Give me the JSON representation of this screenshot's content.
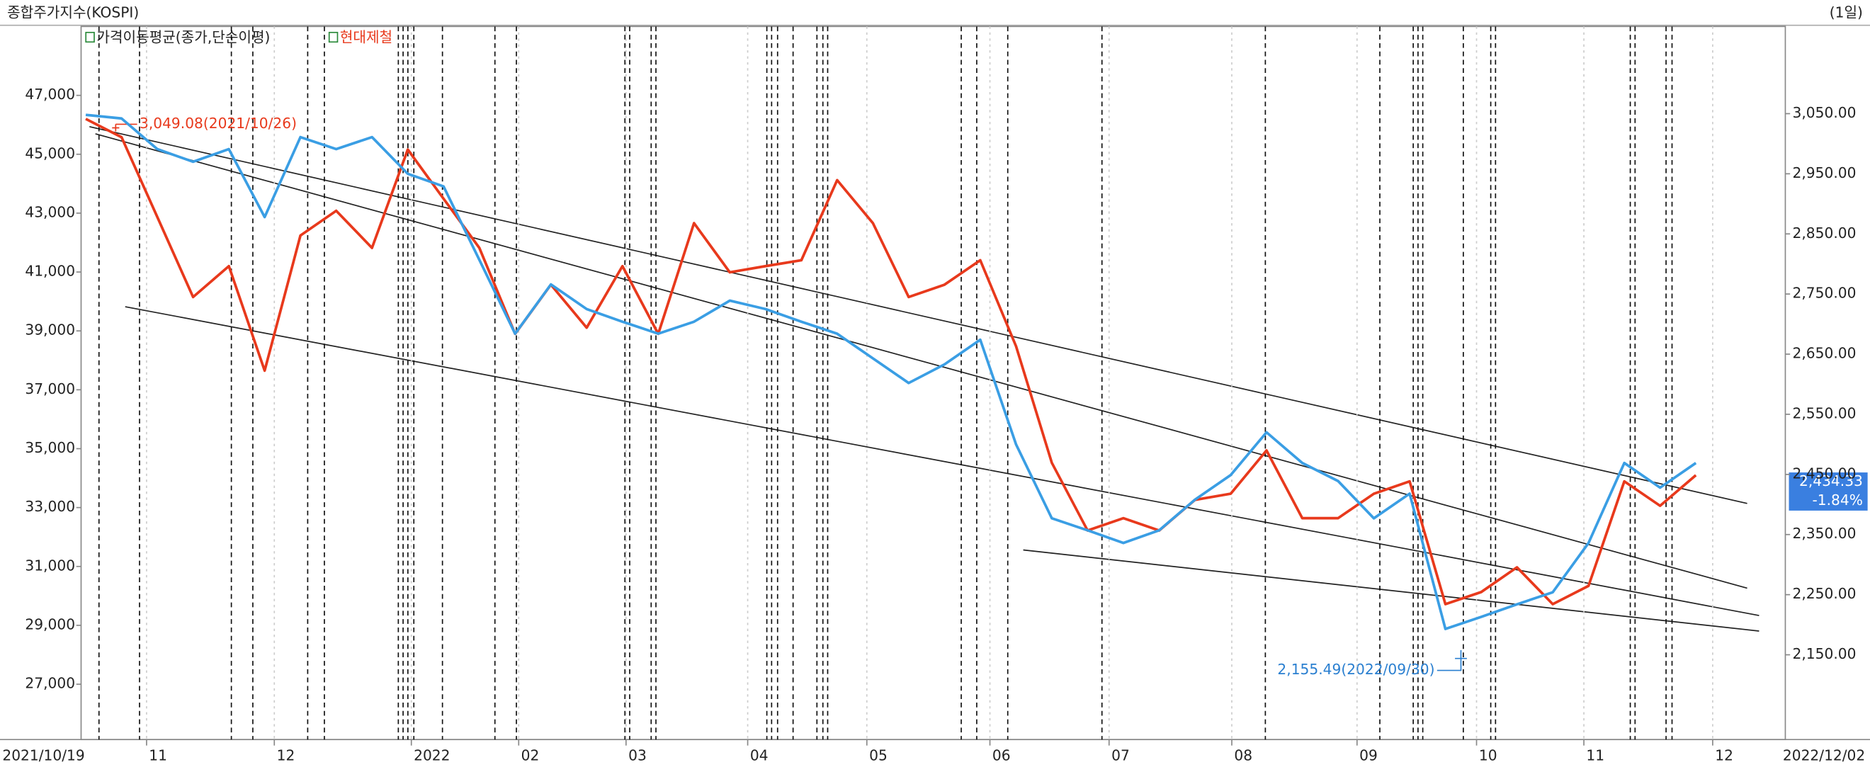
{
  "chart_data": {
    "type": "line",
    "title": "종합주가지수(KOSPI)",
    "period_label": "(1일)",
    "x_range_labels": [
      "2021/10/19",
      "2022/12/02"
    ],
    "x": [
      0,
      1,
      2,
      3,
      4,
      5,
      6,
      7,
      8,
      9,
      10,
      11,
      12,
      13,
      14,
      15,
      16,
      17,
      18,
      19,
      20,
      21,
      22,
      23,
      24,
      25,
      26,
      27,
      28,
      29,
      30,
      31,
      32,
      33,
      34,
      35,
      36,
      37,
      38,
      39,
      40,
      41,
      42,
      43,
      44,
      45
    ],
    "xlim": [
      -0.13,
      47.5
    ],
    "xticks": [
      {
        "value": 1.7,
        "label": "11"
      },
      {
        "value": 5.27,
        "label": "12"
      },
      {
        "value": 9.1,
        "label": "2022"
      },
      {
        "value": 12.1,
        "label": "02"
      },
      {
        "value": 15.1,
        "label": "03"
      },
      {
        "value": 18.5,
        "label": "04"
      },
      {
        "value": 21.83,
        "label": "05"
      },
      {
        "value": 25.27,
        "label": "06"
      },
      {
        "value": 28.6,
        "label": "07"
      },
      {
        "value": 32.03,
        "label": "08"
      },
      {
        "value": 35.53,
        "label": "09"
      },
      {
        "value": 38.87,
        "label": "10"
      },
      {
        "value": 41.87,
        "label": "11"
      },
      {
        "value": 45.47,
        "label": "12"
      }
    ],
    "ylim": [
      25120,
      49340
    ],
    "yticks": [
      {
        "value": 27000,
        "label": "27,000"
      },
      {
        "value": 29000,
        "label": "29,000"
      },
      {
        "value": 31000,
        "label": "31,000"
      },
      {
        "value": 33000,
        "label": "33,000"
      },
      {
        "value": 35000,
        "label": "35,000"
      },
      {
        "value": 37000,
        "label": "37,000"
      },
      {
        "value": 39000,
        "label": "39,000"
      },
      {
        "value": 41000,
        "label": "41,000"
      },
      {
        "value": 43000,
        "label": "43,000"
      },
      {
        "value": 45000,
        "label": "45,000"
      },
      {
        "value": 47000,
        "label": "47,000"
      }
    ],
    "y2lim": [
      2009,
      3195
    ],
    "y2ticks": [
      {
        "value": 2150,
        "label": "2,150.00"
      },
      {
        "value": 2250,
        "label": "2,250.00"
      },
      {
        "value": 2350,
        "label": "2,350.00"
      },
      {
        "value": 2450,
        "label": "2,450.00"
      },
      {
        "value": 2550,
        "label": "2,550.00"
      },
      {
        "value": 2650,
        "label": "2,650.00"
      },
      {
        "value": 2750,
        "label": "2,750.00"
      },
      {
        "value": 2850,
        "label": "2,850.00"
      },
      {
        "value": 2950,
        "label": "2,950.00"
      },
      {
        "value": 3050,
        "label": "3,050.00"
      }
    ],
    "series": [
      {
        "name": "가격이동평균(종가,단순이평)",
        "color": "#3a9ee4",
        "axis": "y2",
        "values": [
          3048,
          3042,
          2991,
          2970,
          2991,
          2878,
          3011,
          2991,
          3011,
          2950,
          2929,
          2807,
          2684,
          2766,
          2725,
          2704,
          2684,
          2704,
          2739,
          2725,
          2704,
          2684,
          2643,
          2602,
          2633,
          2674,
          2500,
          2377,
          2357,
          2336,
          2357,
          2408,
          2449,
          2520,
          2469,
          2439,
          2377,
          2418,
          2193,
          2213,
          2234,
          2254,
          2336,
          2469,
          2428,
          2469
        ]
      },
      {
        "name": "현대제철",
        "color": "#e8391c",
        "axis": "y",
        "values": [
          46200,
          45580,
          42870,
          40150,
          41200,
          37650,
          42240,
          43080,
          41820,
          45160,
          43490,
          41820,
          38900,
          40570,
          39110,
          41200,
          38900,
          42660,
          40990,
          41200,
          41400,
          44120,
          42660,
          40150,
          40570,
          41400,
          38480,
          34520,
          32220,
          32640,
          32220,
          33260,
          33470,
          34940,
          32640,
          32640,
          33470,
          33890,
          29720,
          30130,
          30970,
          29720,
          30340,
          33890,
          33060,
          34100
        ]
      }
    ],
    "annotations": [
      "3,049.08(2021/10/26)",
      "2,155.49(2022/09/30)"
    ],
    "last_value_label": "2,434.33",
    "last_change_label": "-1.84%"
  }
}
